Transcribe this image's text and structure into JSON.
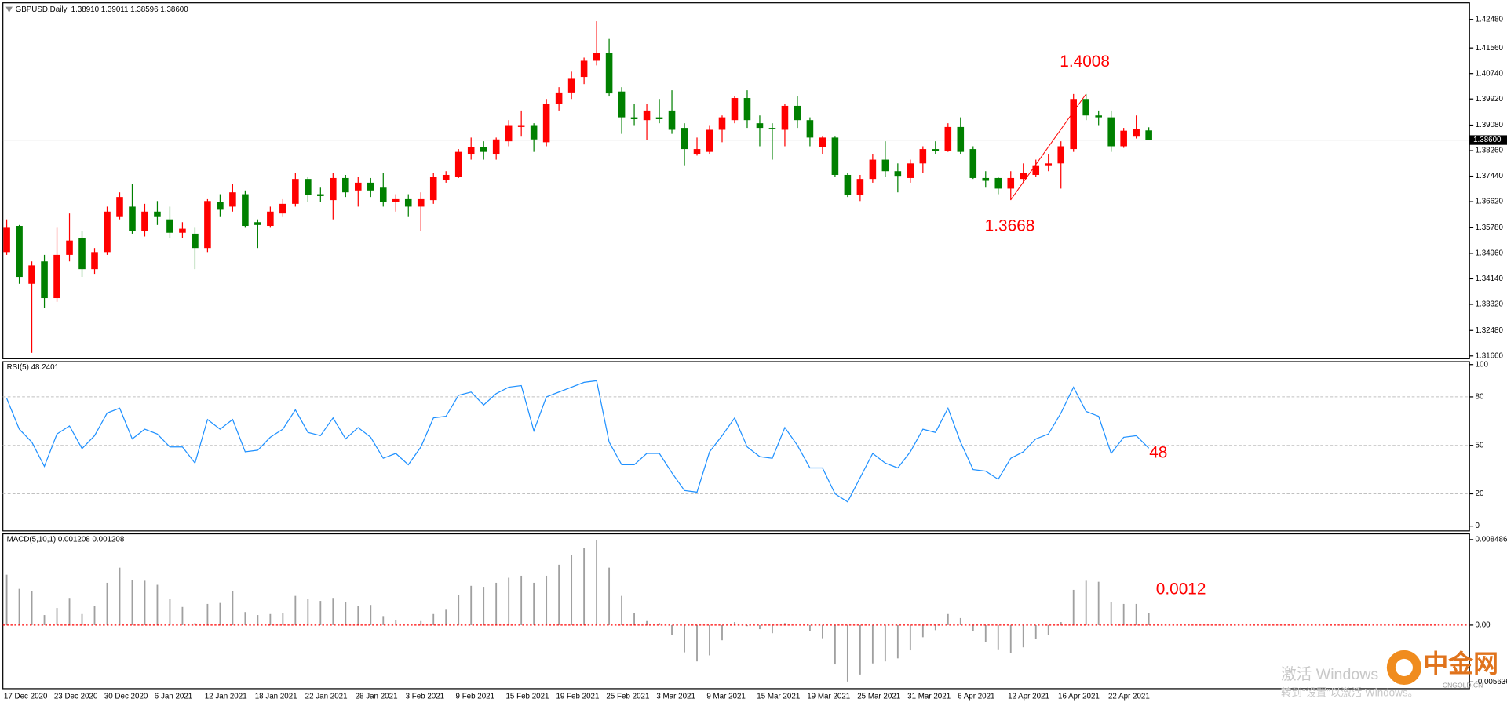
{
  "chart_data": [
    {
      "type": "candlestick",
      "title": "GBPUSD,Daily",
      "quote": "1.38910 1.39011 1.38596 1.38600",
      "categories": [
        "17 Dec 2020",
        null,
        null,
        null,
        "23 Dec 2020",
        null,
        null,
        null,
        "30 Dec 2020",
        null,
        null,
        null,
        "6 Jan 2021",
        null,
        null,
        null,
        "12 Jan 2021",
        null,
        null,
        null,
        "18 Jan 2021",
        null,
        null,
        null,
        "22 Jan 2021",
        null,
        null,
        null,
        "28 Jan 2021",
        null,
        null,
        null,
        "3 Feb 2021",
        null,
        null,
        null,
        "9 Feb 2021",
        null,
        null,
        null,
        "15 Feb 2021",
        null,
        null,
        null,
        "19 Feb 2021",
        null,
        null,
        null,
        "25 Feb 2021",
        null,
        null,
        null,
        "3 Mar 2021",
        null,
        null,
        null,
        "9 Mar 2021",
        null,
        null,
        null,
        "15 Mar 2021",
        null,
        null,
        null,
        "19 Mar 2021",
        null,
        null,
        null,
        "25 Mar 2021",
        null,
        null,
        null,
        "31 Mar 2021",
        null,
        null,
        null,
        "6 Apr 2021",
        null,
        null,
        null,
        "12 Apr 2021",
        null,
        null,
        null,
        "16 Apr 2021",
        null,
        null,
        null,
        "22 Apr 2021",
        null,
        null,
        null
      ],
      "open": [
        1.35,
        1.3584,
        1.3398,
        1.347,
        1.3352,
        1.3491,
        1.3544,
        1.3445,
        1.35,
        1.3615,
        1.3646,
        1.3568,
        1.363,
        1.3605,
        1.3562,
        1.3559,
        1.3513,
        1.3661,
        1.3646,
        1.3686,
        1.3596,
        1.3584,
        1.3624,
        1.3655,
        1.3735,
        1.3686,
        1.3667,
        1.3738,
        1.3698,
        1.3723,
        1.3707,
        1.3661,
        1.367,
        1.3646,
        1.3667,
        1.3732,
        1.3741,
        1.3816,
        1.3837,
        1.3816,
        1.3856,
        1.3902,
        1.3908,
        1.3853,
        1.3976,
        1.4013,
        1.4063,
        1.4115,
        1.414,
        1.4016,
        1.3933,
        1.3924,
        1.3933,
        1.3955,
        1.3899,
        1.3816,
        1.3822,
        1.3893,
        1.3924,
        1.3995,
        1.3914,
        1.3899,
        1.3893,
        1.397,
        1.3924,
        1.3837,
        1.3868,
        1.3748,
        1.3683,
        1.3735,
        1.3797,
        1.376,
        1.3738,
        1.3785,
        1.3831,
        1.3825,
        1.3902,
        1.3831,
        1.3738,
        1.3738,
        1.3704,
        1.3735,
        1.3748,
        1.3779,
        1.3785,
        1.3831,
        1.3992,
        1.3939,
        1.3933,
        1.384,
        1.3871,
        1.3891
      ],
      "high": [
        1.3605,
        1.3587,
        1.347,
        1.3491,
        1.3578,
        1.3624,
        1.3568,
        1.3513,
        1.3646,
        1.3692,
        1.372,
        1.3655,
        1.3664,
        1.3646,
        1.3596,
        1.3578,
        1.367,
        1.3686,
        1.372,
        1.3698,
        1.3605,
        1.3646,
        1.367,
        1.3754,
        1.3741,
        1.3707,
        1.3754,
        1.3748,
        1.3741,
        1.3738,
        1.3754,
        1.3686,
        1.3686,
        1.3692,
        1.3754,
        1.376,
        1.3831,
        1.3868,
        1.3856,
        1.3868,
        1.3924,
        1.3955,
        1.3914,
        1.3992,
        1.403,
        1.408,
        1.4125,
        1.4242,
        1.4185,
        1.403,
        1.3976,
        1.3976,
        1.3992,
        1.402,
        1.3914,
        1.3868,
        1.3908,
        1.3939,
        1.4,
        1.402,
        1.3939,
        1.3914,
        1.3976,
        1.4,
        1.3933,
        1.3871,
        1.3871,
        1.3754,
        1.3748,
        1.3816,
        1.3856,
        1.3785,
        1.3797,
        1.384,
        1.3856,
        1.3914,
        1.3933,
        1.384,
        1.376,
        1.3741,
        1.376,
        1.3785,
        1.3797,
        1.3816,
        1.3856,
        1.4008,
        1.4008,
        1.3955,
        1.3955,
        1.3899,
        1.3939,
        1.3901
      ],
      "low": [
        1.3491,
        1.3398,
        1.3176,
        1.332,
        1.334,
        1.347,
        1.342,
        1.343,
        1.3491,
        1.3605,
        1.3559,
        1.355,
        1.3587,
        1.3544,
        1.3544,
        1.3445,
        1.35,
        1.3615,
        1.363,
        1.3578,
        1.3513,
        1.3578,
        1.3615,
        1.3646,
        1.3661,
        1.3661,
        1.3605,
        1.3677,
        1.3646,
        1.3677,
        1.3646,
        1.363,
        1.3615,
        1.3568,
        1.3655,
        1.3723,
        1.3738,
        1.3797,
        1.3797,
        1.3797,
        1.384,
        1.3871,
        1.3822,
        1.384,
        1.3955,
        1.3992,
        1.404,
        1.41,
        1.4,
        1.388,
        1.3908,
        1.386,
        1.3914,
        1.388,
        1.3779,
        1.381,
        1.3816,
        1.3853,
        1.3914,
        1.3899,
        1.384,
        1.3797,
        1.384,
        1.3899,
        1.384,
        1.3816,
        1.3741,
        1.3677,
        1.3664,
        1.3723,
        1.3741,
        1.3692,
        1.3723,
        1.3754,
        1.3816,
        1.3822,
        1.3816,
        1.3735,
        1.3707,
        1.3686,
        1.3667,
        1.3723,
        1.3741,
        1.376,
        1.3704,
        1.3822,
        1.3924,
        1.3908,
        1.3822,
        1.3835,
        1.3865,
        1.386
      ],
      "close": [
        1.3578,
        1.342,
        1.3457,
        1.3352,
        1.3491,
        1.3537,
        1.3445,
        1.35,
        1.363,
        1.3677,
        1.3568,
        1.363,
        1.3615,
        1.3562,
        1.3575,
        1.3513,
        1.3664,
        1.3636,
        1.3692,
        1.3584,
        1.3587,
        1.363,
        1.3655,
        1.3735,
        1.3683,
        1.368,
        1.3738,
        1.3692,
        1.3723,
        1.3698,
        1.3661,
        1.367,
        1.3646,
        1.367,
        1.3741,
        1.3748,
        1.3822,
        1.3837,
        1.3822,
        1.3862,
        1.3908,
        1.3908,
        1.3862,
        1.3976,
        1.4013,
        1.4057,
        1.4115,
        1.414,
        1.401,
        1.3933,
        1.3927,
        1.3955,
        1.3927,
        1.3893,
        1.3831,
        1.3831,
        1.3893,
        1.3933,
        1.3995,
        1.3924,
        1.3899,
        1.3896,
        1.397,
        1.3924,
        1.3868,
        1.3868,
        1.3748,
        1.3683,
        1.3735,
        1.3797,
        1.376,
        1.3745,
        1.3785,
        1.3831,
        1.3825,
        1.3902,
        1.3822,
        1.3738,
        1.3729,
        1.3704,
        1.3738,
        1.3754,
        1.3779,
        1.3785,
        1.384,
        1.3992,
        1.3939,
        1.3933,
        1.384,
        1.389,
        1.3896,
        1.386
      ],
      "up_color": "#ff0000",
      "down_color": "#008000",
      "ylim": [
        1.3157,
        1.4301
      ],
      "yticks": [
        {
          "value": 1.4248,
          "label": "1.42480"
        },
        {
          "value": 1.4156,
          "label": "1.41560"
        },
        {
          "value": 1.4074,
          "label": "1.40740"
        },
        {
          "value": 1.3992,
          "label": "1.39920"
        },
        {
          "value": 1.3908,
          "label": "1.39080"
        },
        {
          "value": 1.3826,
          "label": "1.38260"
        },
        {
          "value": 1.3744,
          "label": "1.37440"
        },
        {
          "value": 1.3662,
          "label": "1.36620"
        },
        {
          "value": 1.3578,
          "label": "1.35780"
        },
        {
          "value": 1.3496,
          "label": "1.34960"
        },
        {
          "value": 1.3414,
          "label": "1.34140"
        },
        {
          "value": 1.3332,
          "label": "1.33320"
        },
        {
          "value": 1.3248,
          "label": "1.32480"
        },
        {
          "value": 1.3166,
          "label": "1.31660"
        }
      ],
      "last_price": {
        "value": 1.386,
        "label": "1.38600"
      },
      "annotations": [
        {
          "value": 1.4008,
          "label": "1.4008"
        },
        {
          "value": 1.3668,
          "label": "1.3668"
        }
      ]
    },
    {
      "type": "line",
      "title": "RSI(5) 48.2401",
      "color": "#1e90ff",
      "values": [
        79,
        60,
        52,
        37,
        57,
        62,
        48,
        56,
        70,
        73,
        54,
        60,
        57,
        49,
        49,
        39,
        66,
        60,
        66,
        46,
        47,
        55,
        60,
        72,
        58,
        56,
        67,
        54,
        61,
        55,
        42,
        45,
        38,
        49,
        67,
        68,
        81,
        83,
        75,
        82,
        86,
        87,
        59,
        80,
        83,
        86,
        89,
        90,
        52,
        38,
        38,
        45,
        45,
        33,
        22,
        21,
        46,
        56,
        67,
        49,
        43,
        42,
        61,
        50,
        36,
        36,
        20,
        15,
        30,
        45,
        39,
        36,
        46,
        60,
        58,
        73,
        52,
        35,
        34,
        29,
        42,
        46,
        54,
        57,
        70,
        86,
        71,
        68,
        45,
        55,
        56,
        48.24
      ],
      "ylim": [
        -3,
        101.8
      ],
      "yticks": [
        100,
        80,
        50,
        20,
        0
      ],
      "levels": [
        80,
        50,
        20
      ],
      "annotations": [
        {
          "value": 48,
          "label": "48"
        }
      ]
    },
    {
      "type": "bar",
      "title": "MACD(5,10,1) 0.001208 0.001208",
      "color": "#a0a0a0",
      "signal_color": "#ff0000",
      "values": [
        0.005,
        0.0036,
        0.0034,
        0.001,
        0.0017,
        0.0027,
        0.0011,
        0.0019,
        0.0042,
        0.0057,
        0.0045,
        0.0044,
        0.004,
        0.0026,
        0.0018,
        0.0002,
        0.0021,
        0.0022,
        0.0034,
        0.0013,
        0.001,
        0.0011,
        0.0012,
        0.0029,
        0.0026,
        0.0024,
        0.0027,
        0.0023,
        0.0019,
        0.002,
        0.0009,
        0.0005,
        0,
        0.0004,
        0.0011,
        0.0016,
        0.003,
        0.0039,
        0.0038,
        0.0042,
        0.0047,
        0.0049,
        0.0042,
        0.0049,
        0.006,
        0.007,
        0.0077,
        0.0084,
        0.0057,
        0.0029,
        0.0012,
        0.0004,
        0.0002,
        -0.001,
        -0.0027,
        -0.0036,
        -0.003,
        -0.0015,
        0.0003,
        -0.0001,
        -0.0004,
        -0.0008,
        0.0002,
        0,
        -0.0006,
        -0.0013,
        -0.0039,
        -0.0056,
        -0.0049,
        -0.0038,
        -0.0036,
        -0.0033,
        -0.0025,
        -0.0012,
        -0.0005,
        0.0011,
        0.0007,
        -0.0006,
        -0.0017,
        -0.0024,
        -0.0028,
        -0.0022,
        -0.0014,
        -0.001,
        0.0003,
        0.0035,
        0.0044,
        0.0043,
        0.0023,
        0.0021,
        0.0021,
        0.001208
      ],
      "ylim": [
        -0.006304,
        0.009058
      ],
      "yticks": [
        0.008486,
        {
          "value": 0,
          "label": "0.00"
        },
        -0.005636
      ],
      "annotations": [
        {
          "value": 0.0012,
          "label": "0.0012"
        }
      ]
    }
  ],
  "watermark": {
    "line1": "激活 Windows",
    "line2": "转到“设置”以激活 Windows。"
  },
  "logo": {
    "name": "中金网",
    "site": "CNGOLD.CN"
  }
}
